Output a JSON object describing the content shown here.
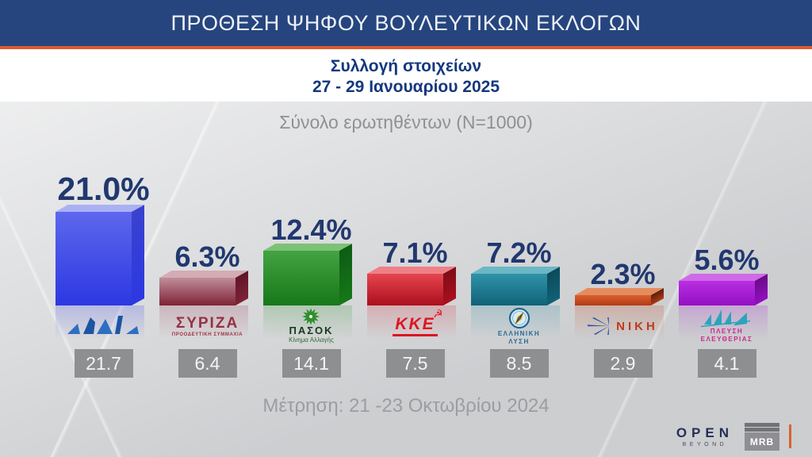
{
  "header": {
    "title": "ΠΡΟΘΕΣΗ ΨΗΦΟΥ ΒΟΥΛΕΥΤΙΚΩΝ ΕΚΛΟΓΩΝ"
  },
  "subtitle": {
    "line1": "Συλλογή στοιχείων",
    "line2": "27 - 29 Ιανουαρίου 2025"
  },
  "sample_note": "Σύνολο ερωτηθέντων (N=1000)",
  "footer_note": "Μέτρηση: 21 -23 Οκτωβρίου 2024",
  "branding": {
    "open": "OPEN",
    "open_sub": "BEYOND",
    "mrb": "MRB"
  },
  "colors": {
    "header_bg": "#26457e",
    "accent_orange": "#dd5a2e",
    "subtitle_text": "#14387e",
    "percent_text": "#21386f",
    "note_text": "#8f9094",
    "prev_box_bg": "#8e8f91",
    "canvas_bg": "#d8d9db"
  },
  "chart_data": {
    "type": "bar",
    "title": "ΠΡΟΘΕΣΗ ΨΗΦΟΥ ΒΟΥΛΕΥΤΙΚΩΝ ΕΚΛΟΓΩΝ",
    "subtitle": "Συλλογή στοιχείων 27 - 29 Ιανουαρίου 2025",
    "sample": "N=1000",
    "categories": [
      "ΝΔ",
      "ΣΥΡΙΖΑ",
      "ΠΑΣΟΚ",
      "ΚΚΕ",
      "ΕΛΛΗΝΙΚΗ ΛΥΣΗ",
      "ΝΙΚΗ",
      "ΠΛΕΥΣΗ ΕΛΕΥΘΕΡΙΑΣ"
    ],
    "series": [
      {
        "name": "27 - 29 Ιανουαρίου 2025",
        "values": [
          21.0,
          6.3,
          12.4,
          7.1,
          7.2,
          2.3,
          5.6
        ]
      },
      {
        "name": "Μέτρηση: 21 -23 Οκτωβρίου 2024",
        "values": [
          21.7,
          6.4,
          14.1,
          7.5,
          8.5,
          2.9,
          4.1
        ]
      }
    ],
    "bar_colors": [
      "#3340e6",
      "#8c2a3c",
      "#2e8c2e",
      "#cf1b28",
      "#1f7d96",
      "#c64a22",
      "#a81cc9"
    ],
    "legend_position": "none",
    "grid": false,
    "value_labels": true
  },
  "parties": [
    {
      "name": "ΝΔ",
      "value": 21.0,
      "value_label": "21.0%",
      "previous_label": "21.7",
      "colors": {
        "front_top": "#5d67ec",
        "front_bottom": "#2c38e2",
        "side": "#3a42cf",
        "top_face": "#aab1f3",
        "reflection": "#4450e8"
      },
      "logo": {
        "id": "nd",
        "name": "ΝΔ"
      }
    },
    {
      "name": "ΣΥΡΙΖΑ",
      "value": 6.3,
      "value_label": "6.3%",
      "previous_label": "6.4",
      "colors": {
        "front_top": "#c08e9a",
        "front_bottom": "#7e2236",
        "side": "#5f1627",
        "top_face": "#d5acb4",
        "reflection": "#9c4a5c"
      },
      "logo": {
        "id": "syriza",
        "main": "ΣΥΡΙΖΑ",
        "sub": "ΠΡΟΟΔΕΥΤΙΚΗ ΣΥΜΜΑΧΙΑ"
      }
    },
    {
      "name": "ΠΑΣΟΚ",
      "value": 12.4,
      "value_label": "12.4%",
      "previous_label": "14.1",
      "colors": {
        "front_top": "#44a342",
        "front_bottom": "#167818",
        "side": "#0d5c14",
        "top_face": "#7cc276",
        "reflection": "#3c9a3c"
      },
      "logo": {
        "id": "pasok",
        "main": "ΠΑΣΟΚ",
        "sub": "Κίνημα Αλλαγής"
      }
    },
    {
      "name": "ΚΚΕ",
      "value": 7.1,
      "value_label": "7.1%",
      "previous_label": "7.5",
      "colors": {
        "front_top": "#e6454f",
        "front_bottom": "#ab0f1d",
        "side": "#7c0e16",
        "top_face": "#ef8088",
        "reflection": "#d23a44"
      },
      "logo": {
        "id": "kke",
        "main": "ΚΚΕ",
        "icon": "☭"
      }
    },
    {
      "name": "ΕΛΛΗΝΙΚΗ ΛΥΣΗ",
      "value": 7.2,
      "value_label": "7.2%",
      "previous_label": "8.5",
      "colors": {
        "front_top": "#2f93a8",
        "front_bottom": "#116277",
        "side": "#0b4a5a",
        "top_face": "#6cb7c6",
        "reflection": "#3e96aa"
      },
      "logo": {
        "id": "ell",
        "line1": "ΕΛΛΗΝΙΚΗ",
        "line2": "ΛΥΣΗ"
      }
    },
    {
      "name": "ΝΙΚΗ",
      "value": 2.3,
      "value_label": "2.3%",
      "previous_label": "2.9",
      "colors": {
        "front_top": "#d8602e",
        "front_bottom": "#b23a14",
        "side": "#5a1f0e",
        "top_face": "#e58c5e",
        "reflection": "#c8552a"
      },
      "logo": {
        "id": "niki",
        "main": "ΝΙΚΗ"
      }
    },
    {
      "name": "ΠΛΕΥΣΗ ΕΛΕΥΘΕΡΙΑΣ",
      "value": 5.6,
      "value_label": "5.6%",
      "previous_label": "4.1",
      "colors": {
        "front_top": "#b92fe2",
        "front_bottom": "#9410c2",
        "side": "#6a0b86",
        "top_face": "#d06ae8",
        "reflection": "#ae32d4"
      },
      "logo": {
        "id": "plefsi",
        "line1": "ΠΛΕΥΣΗ",
        "line2": "ΕΛΕΥΘΕΡΙΑΣ"
      }
    }
  ]
}
